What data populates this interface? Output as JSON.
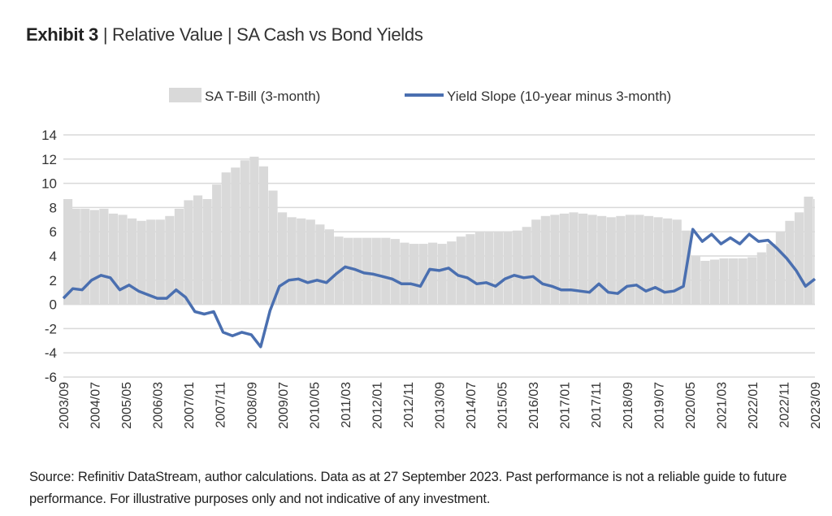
{
  "title": {
    "bold": "Exhibit 3",
    "rest": "| Relative Value | SA Cash vs Bond Yields"
  },
  "source": "Source: Refinitiv DataStream, author calculations. Data as at 27 September 2023. Past performance is not a reliable guide to future performance. For illustrative purposes only and not indicative of any investment.",
  "colors": {
    "bars": "#d9d9d9",
    "line": "#4a6fb0",
    "grid": "#d9d9d9"
  },
  "chart_data": {
    "type": "bar+line",
    "title": "",
    "xlabel": "",
    "ylabel": "",
    "ylim": [
      -6,
      14
    ],
    "yticks": [
      -6,
      -4,
      -2,
      0,
      2,
      4,
      6,
      8,
      10,
      12,
      14
    ],
    "grid": true,
    "legend_placement": "top",
    "xtick_labels": [
      "2003/09",
      "2004/07",
      "2005/05",
      "2006/03",
      "2007/01",
      "2007/11",
      "2008/09",
      "2009/07",
      "2010/05",
      "2011/03",
      "2012/01",
      "2012/11",
      "2013/09",
      "2014/07",
      "2015/05",
      "2016/03",
      "2017/01",
      "2017/11",
      "2018/09",
      "2019/07",
      "2020/05",
      "2021/03",
      "2022/01",
      "2022/11",
      "2023/09"
    ],
    "x": [
      "2003/09",
      "2003/12",
      "2004/03",
      "2004/06",
      "2004/09",
      "2004/12",
      "2005/03",
      "2005/06",
      "2005/09",
      "2005/12",
      "2006/03",
      "2006/06",
      "2006/09",
      "2006/12",
      "2007/03",
      "2007/06",
      "2007/09",
      "2007/12",
      "2008/03",
      "2008/06",
      "2008/09",
      "2008/12",
      "2009/03",
      "2009/06",
      "2009/09",
      "2009/12",
      "2010/03",
      "2010/06",
      "2010/09",
      "2010/12",
      "2011/03",
      "2011/06",
      "2011/09",
      "2011/12",
      "2012/03",
      "2012/06",
      "2012/09",
      "2012/12",
      "2013/03",
      "2013/06",
      "2013/09",
      "2013/12",
      "2014/03",
      "2014/06",
      "2014/09",
      "2014/12",
      "2015/03",
      "2015/06",
      "2015/09",
      "2015/12",
      "2016/03",
      "2016/06",
      "2016/09",
      "2016/12",
      "2017/03",
      "2017/06",
      "2017/09",
      "2017/12",
      "2018/03",
      "2018/06",
      "2018/09",
      "2018/12",
      "2019/03",
      "2019/06",
      "2019/09",
      "2019/12",
      "2020/03",
      "2020/06",
      "2020/09",
      "2020/12",
      "2021/03",
      "2021/06",
      "2021/09",
      "2021/12",
      "2022/03",
      "2022/06",
      "2022/09",
      "2022/12",
      "2023/03",
      "2023/06",
      "2023/09"
    ],
    "series": [
      {
        "name": "SA T-Bill (3-month)",
        "kind": "bar",
        "values": [
          8.7,
          7.9,
          7.9,
          7.8,
          7.9,
          7.5,
          7.4,
          7.1,
          6.9,
          7.0,
          7.0,
          7.3,
          7.9,
          8.6,
          9.0,
          8.7,
          9.9,
          10.9,
          11.3,
          11.9,
          12.2,
          11.4,
          9.4,
          7.6,
          7.2,
          7.1,
          7.0,
          6.6,
          6.2,
          5.6,
          5.5,
          5.5,
          5.5,
          5.5,
          5.5,
          5.4,
          5.1,
          5.0,
          5.0,
          5.1,
          5.0,
          5.2,
          5.6,
          5.8,
          6.0,
          6.0,
          6.0,
          6.0,
          6.1,
          6.4,
          7.0,
          7.3,
          7.4,
          7.5,
          7.6,
          7.5,
          7.4,
          7.3,
          7.2,
          7.3,
          7.4,
          7.4,
          7.3,
          7.2,
          7.1,
          7.0,
          6.1,
          4.0,
          3.6,
          3.7,
          3.8,
          3.8,
          3.8,
          3.9,
          4.3,
          5.0,
          6.0,
          6.9,
          7.6,
          8.9,
          8.7
        ]
      },
      {
        "name": "Yield Slope (10-year minus 3-month)",
        "kind": "line",
        "values": [
          0.5,
          1.3,
          1.2,
          2.0,
          2.4,
          2.2,
          1.2,
          1.6,
          1.1,
          0.8,
          0.5,
          0.5,
          1.2,
          0.6,
          -0.6,
          -0.8,
          -0.6,
          -2.3,
          -2.6,
          -2.3,
          -2.5,
          -3.5,
          -0.5,
          1.5,
          2.0,
          2.1,
          1.8,
          2.0,
          1.8,
          2.5,
          3.1,
          2.9,
          2.6,
          2.5,
          2.3,
          2.1,
          1.7,
          1.7,
          1.5,
          2.9,
          2.8,
          3.0,
          2.4,
          2.2,
          1.7,
          1.8,
          1.5,
          2.1,
          2.4,
          2.2,
          2.3,
          1.7,
          1.5,
          1.2,
          1.2,
          1.1,
          1.0,
          1.7,
          1.0,
          0.9,
          1.5,
          1.6,
          1.1,
          1.4,
          1.0,
          1.1,
          1.5,
          6.2,
          5.2,
          5.8,
          5.0,
          5.5,
          5.0,
          5.8,
          5.2,
          5.3,
          4.6,
          3.8,
          2.8,
          1.5,
          2.1
        ]
      }
    ]
  }
}
